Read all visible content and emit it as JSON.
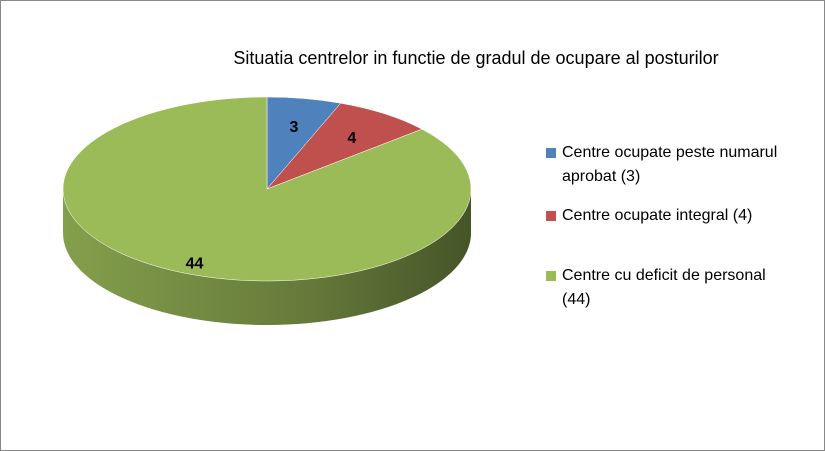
{
  "chart_data": {
    "type": "pie",
    "title": "Situatia  centrelor in functie de gradul de ocupare al posturilor",
    "categories": [
      "Centre ocupate peste numarul aprobat (3)",
      "Centre ocupate integral (4)",
      "Centre cu deficit de personal (44)"
    ],
    "values": [
      3,
      4,
      44
    ],
    "colors": [
      "#4f81bd",
      "#c0504d",
      "#9bbb59"
    ],
    "legend": "right"
  }
}
